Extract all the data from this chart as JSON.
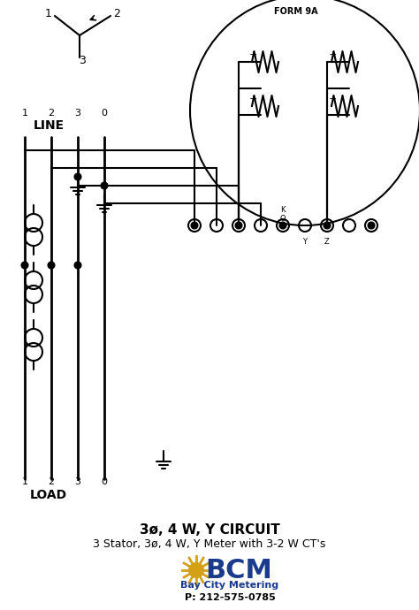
{
  "title": "3ø, 4 W, Y CIRCUIT",
  "subtitle": "3 Stator, 3ø, 4 W, Y Meter with 3-2 W CT's",
  "form_label": "FORM 9A",
  "line_label": "LINE",
  "load_label": "LOAD",
  "line_numbers": [
    "1",
    "2",
    "3",
    "0"
  ],
  "load_numbers": [
    "1",
    "2",
    "3",
    "0"
  ],
  "phone": "P: 212-575-0785",
  "company": "Bay City Metering",
  "bg_color": "#ffffff",
  "line_color": "#000000",
  "bcm_color": "#1a3a8c",
  "gold_color": "#d4a017"
}
